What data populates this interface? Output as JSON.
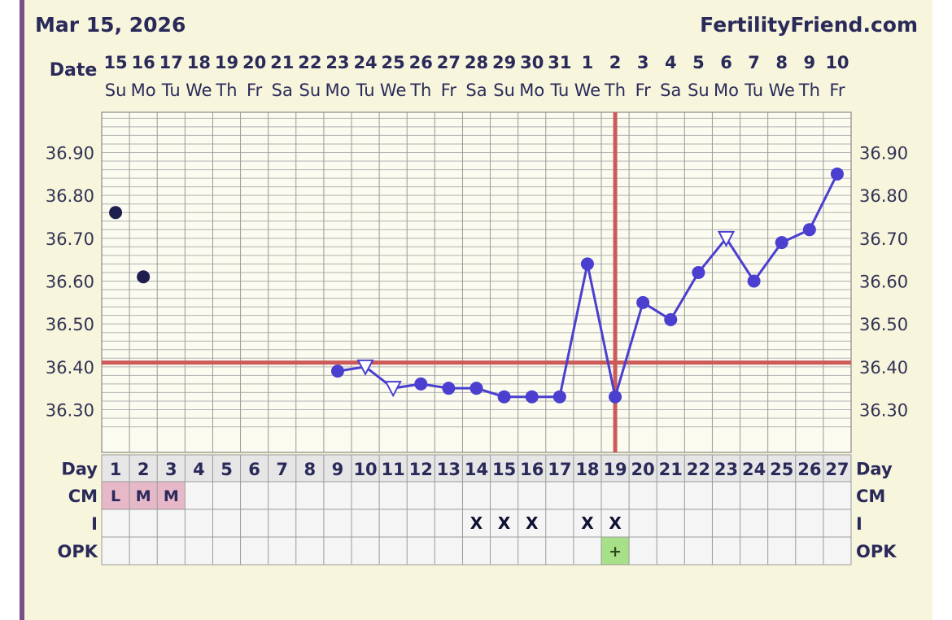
{
  "header": {
    "date": "Mar 15, 2026",
    "site": "FertilityFriend.com"
  },
  "colors": {
    "background": "#f7f5dc",
    "grid": "#9a9a9a",
    "line": "#4a3fcf",
    "coverline": "#cc5a5a",
    "early_point": "#1f1f4f",
    "cm_cell": "#e7b8c8",
    "opk_positive": "#a8e08a"
  },
  "chart_data": {
    "type": "line",
    "ylim": [
      36.2,
      37.0
    ],
    "y_ticks": [
      "36.30",
      "36.40",
      "36.50",
      "36.60",
      "36.70",
      "36.80",
      "36.90"
    ],
    "date_row_label": "Date",
    "dates": [
      "15",
      "16",
      "17",
      "18",
      "19",
      "20",
      "21",
      "22",
      "23",
      "24",
      "25",
      "26",
      "27",
      "28",
      "29",
      "30",
      "31",
      "1",
      "2",
      "3",
      "4",
      "5",
      "6",
      "7",
      "8",
      "9",
      "10"
    ],
    "weekdays": [
      "Su",
      "Mo",
      "Tu",
      "We",
      "Th",
      "Fr",
      "Sa",
      "Su",
      "Mo",
      "Tu",
      "We",
      "Th",
      "Fr",
      "Sa",
      "Su",
      "Mo",
      "Tu",
      "We",
      "Th",
      "Fr",
      "Sa",
      "Su",
      "Mo",
      "Tu",
      "We",
      "Th",
      "Fr"
    ],
    "days": [
      "1",
      "2",
      "3",
      "4",
      "5",
      "6",
      "7",
      "8",
      "9",
      "10",
      "11",
      "12",
      "13",
      "14",
      "15",
      "16",
      "17",
      "18",
      "19",
      "20",
      "21",
      "22",
      "23",
      "24",
      "25",
      "26",
      "27"
    ],
    "series": [
      {
        "values": [
          36.76,
          36.61,
          null,
          null,
          null,
          null,
          null,
          null,
          36.39,
          36.4,
          36.35,
          36.36,
          36.35,
          36.35,
          36.33,
          36.33,
          36.33,
          36.64,
          36.33,
          36.55,
          36.51,
          36.62,
          36.7,
          36.6,
          36.69,
          36.72,
          36.85
        ],
        "connected_from_day": 9,
        "open_triangle_days": [
          10,
          11,
          23
        ],
        "unconnected_days": [
          1,
          2
        ]
      }
    ],
    "coverline": 36.41,
    "ovulation_day": 19,
    "rows": {
      "day_label": "Day",
      "cm_label": "CM",
      "i_label": "I",
      "opk_label": "OPK",
      "cm": [
        "L",
        "M",
        "M",
        "",
        "",
        "",
        "",
        "",
        "",
        "",
        "",
        "",
        "",
        "",
        "",
        "",
        "",
        "",
        "",
        "",
        "",
        "",
        "",
        "",
        "",
        "",
        ""
      ],
      "intercourse": [
        "",
        "",
        "",
        "",
        "",
        "",
        "",
        "",
        "",
        "",
        "",
        "",
        "",
        "X",
        "X",
        "X",
        "",
        "X",
        "X",
        "",
        "",
        "",
        "",
        "",
        "",
        "",
        ""
      ],
      "opk": [
        "",
        "",
        "",
        "",
        "",
        "",
        "",
        "",
        "",
        "",
        "",
        "",
        "",
        "",
        "",
        "",
        "",
        "",
        "+",
        "",
        "",
        "",
        "",
        "",
        "",
        "",
        ""
      ]
    }
  }
}
